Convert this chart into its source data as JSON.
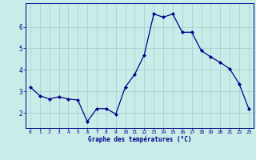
{
  "x": [
    0,
    1,
    2,
    3,
    4,
    5,
    6,
    7,
    8,
    9,
    10,
    11,
    12,
    13,
    14,
    15,
    16,
    17,
    18,
    19,
    20,
    21,
    22,
    23
  ],
  "y": [
    3.2,
    2.8,
    2.65,
    2.75,
    2.65,
    2.6,
    1.6,
    2.2,
    2.2,
    1.95,
    3.2,
    3.8,
    4.7,
    6.6,
    6.45,
    6.6,
    5.75,
    5.75,
    4.9,
    4.6,
    4.35,
    4.05,
    3.35,
    2.2
  ],
  "line_color": "#00008B",
  "marker_color": "#00008B",
  "bg_color": "#C8ECE8",
  "grid_color": "#A0CCCC",
  "xlabel": "Graphe des températures (°C)",
  "xlabel_color": "#00008B",
  "tick_color": "#00008B",
  "ylim": [
    1.3,
    7.1
  ],
  "xlim": [
    -0.5,
    23.5
  ],
  "yticks": [
    2,
    3,
    4,
    5,
    6
  ],
  "xticks": [
    0,
    1,
    2,
    3,
    4,
    5,
    6,
    7,
    8,
    9,
    10,
    11,
    12,
    13,
    14,
    15,
    16,
    17,
    18,
    19,
    20,
    21,
    22,
    23
  ]
}
